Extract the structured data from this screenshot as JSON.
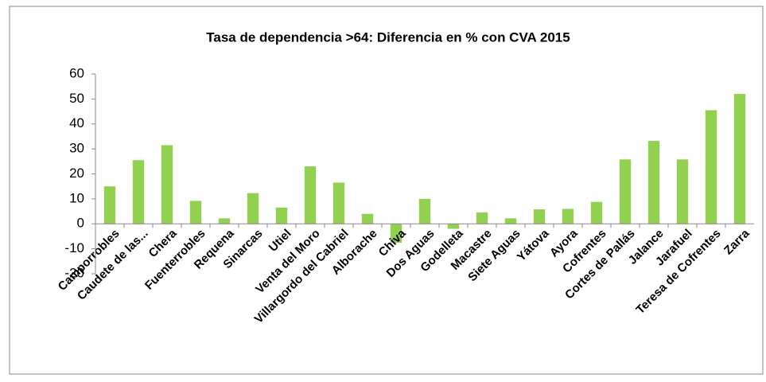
{
  "chart_data": {
    "type": "bar",
    "title": "Tasa de dependencia >64: Diferencia en % con CVA 2015",
    "categories": [
      "Camporrobles",
      "Caudete de las...",
      "Chera",
      "Fuenterrobles",
      "Requena",
      "Sinarcas",
      "Utiel",
      "Venta del Moro",
      "Villargordo del Cabriel",
      "Alborache",
      "Chiva",
      "Dos Aguas",
      "Godelleta",
      "Macastre",
      "Siete Aguas",
      "Yátova",
      "Ayora",
      "Cofrentes",
      "Cortes de Pallás",
      "Jalance",
      "Jarafuel",
      "Teresa de Cofrentes",
      "Zarra"
    ],
    "values": [
      15,
      25.5,
      31.5,
      9.2,
      2.2,
      12.3,
      6.5,
      23,
      16.5,
      4,
      -7.6,
      10,
      -2,
      4.6,
      2.2,
      5.8,
      6,
      8.8,
      25.8,
      33.2,
      25.8,
      45.5,
      52
    ],
    "color": "#92d050",
    "ylim": [
      -20,
      60
    ],
    "yticks": [
      -20,
      -10,
      0,
      10,
      20,
      30,
      40,
      50,
      60
    ],
    "grid": false
  }
}
